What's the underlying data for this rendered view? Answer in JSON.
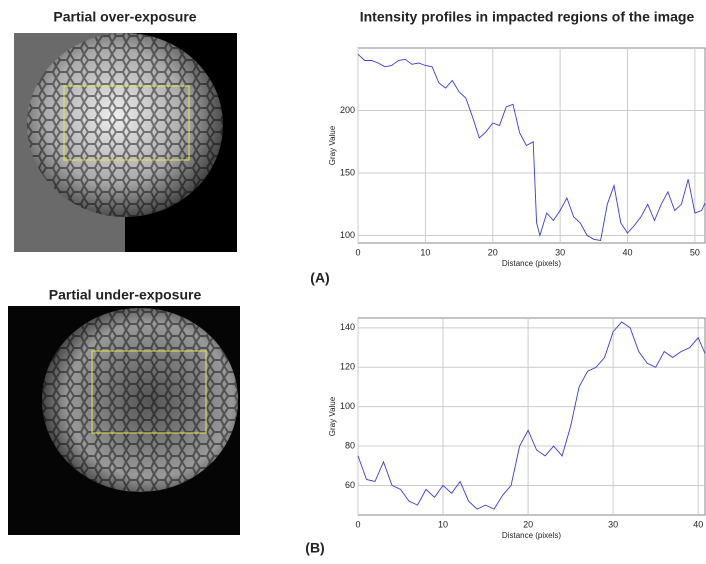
{
  "panels": [
    {
      "image_title": "Partial over-exposure",
      "label": "(A)"
    },
    {
      "image_title": "Partial under-exposure",
      "label": "(B)"
    }
  ],
  "chart_data": [
    {
      "type": "line",
      "title": "Intensity profiles in impacted regions of the image",
      "xlabel": "Distance (pixels)",
      "ylabel": "Gray Value",
      "x": [
        0,
        1,
        2,
        3,
        4,
        5,
        6,
        7,
        8,
        9,
        10,
        11,
        12,
        13,
        14,
        15,
        16,
        17,
        18,
        19,
        20,
        21,
        22,
        23,
        24,
        25,
        26,
        26.5,
        27,
        28,
        29,
        30,
        31,
        32,
        33,
        34,
        35,
        36,
        37,
        38,
        39,
        40,
        41,
        42,
        43,
        44,
        45,
        46,
        47,
        48,
        49,
        50,
        51,
        51.5
      ],
      "series": [
        {
          "color": "#3b3bdc",
          "values": [
            245,
            240,
            240,
            238,
            235,
            236,
            240,
            241,
            237,
            238,
            236,
            235,
            222,
            218,
            224,
            215,
            210,
            195,
            178,
            183,
            190,
            188,
            203,
            205,
            182,
            172,
            175,
            110,
            100,
            118,
            112,
            120,
            130,
            115,
            110,
            100,
            97,
            96,
            125,
            140,
            110,
            102,
            108,
            115,
            125,
            112,
            125,
            135,
            120,
            125,
            145,
            118,
            120,
            126
          ]
        }
      ],
      "xlim": [
        0,
        51.5
      ],
      "ylim": [
        94,
        250
      ],
      "xticks": [
        0,
        10,
        20,
        30,
        40,
        50
      ],
      "yticks": [
        100,
        150,
        200
      ],
      "grid": true
    },
    {
      "type": "line",
      "xlabel": "Distance (pixels)",
      "ylabel": "Gray Value",
      "x": [
        0,
        1,
        2,
        3,
        4,
        5,
        6,
        7,
        8,
        9,
        10,
        11,
        12,
        13,
        14,
        15,
        16,
        17,
        18,
        19,
        20,
        21,
        22,
        23,
        24,
        25,
        26,
        27,
        28,
        29,
        30,
        31,
        32,
        33,
        34,
        35,
        36,
        37,
        38,
        39,
        40,
        40.8
      ],
      "series": [
        {
          "color": "#3b3bdc",
          "values": [
            75,
            63,
            62,
            72,
            60,
            58,
            52,
            50,
            58,
            54,
            60,
            56,
            62,
            52,
            48,
            50,
            48,
            55,
            60,
            80,
            88,
            78,
            75,
            80,
            75,
            90,
            110,
            118,
            120,
            125,
            138,
            143,
            140,
            128,
            122,
            120,
            128,
            125,
            128,
            130,
            135,
            127
          ]
        }
      ],
      "xlim": [
        0,
        40.8
      ],
      "ylim": [
        45,
        145
      ],
      "xticks": [
        0,
        10,
        20,
        30,
        40
      ],
      "yticks": [
        60,
        80,
        100,
        120,
        140
      ],
      "grid": true
    }
  ]
}
